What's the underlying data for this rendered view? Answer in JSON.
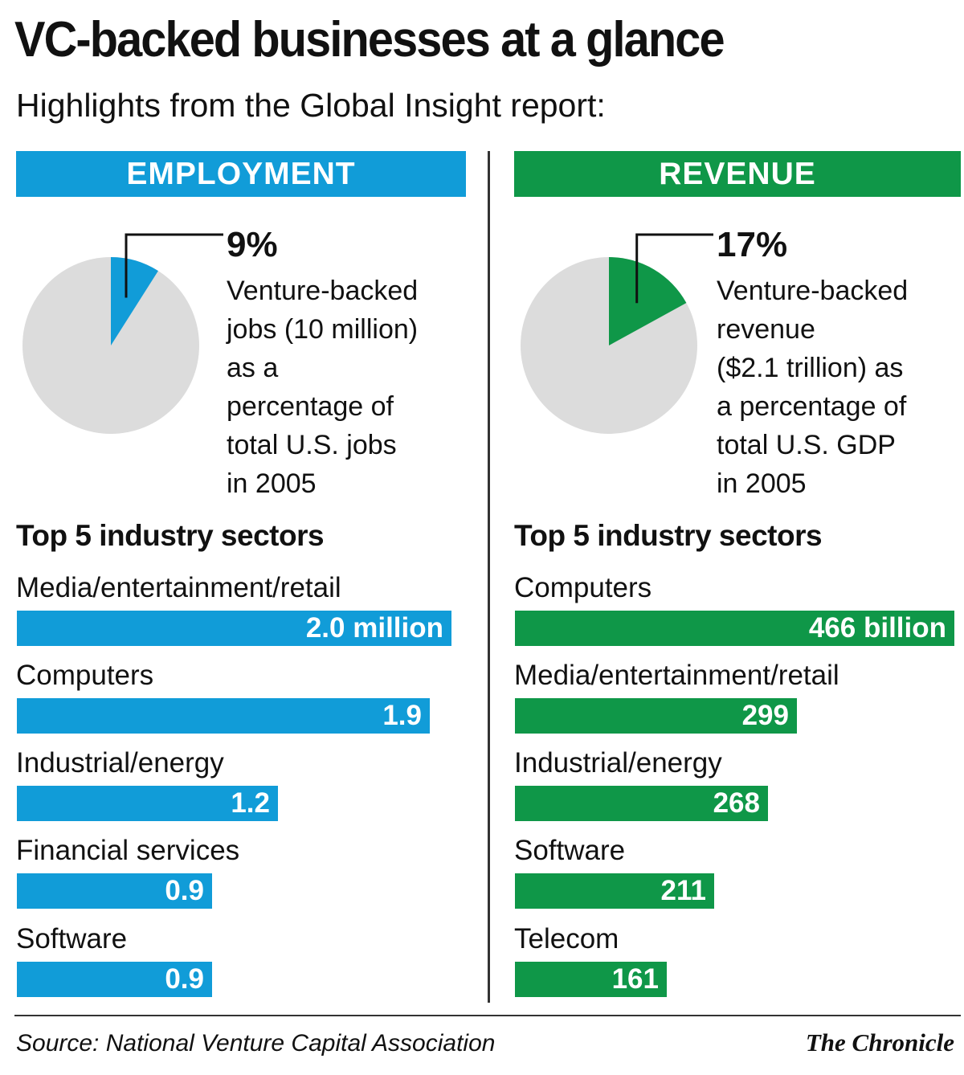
{
  "title": "VC-backed businesses at a glance",
  "subtitle": "Highlights from the Global Insight report:",
  "colors": {
    "employment": "#119cd8",
    "revenue": "#0f9748",
    "pie_base": "#dcdcdc",
    "leader": "#111111"
  },
  "chart_data": [
    {
      "type": "pie",
      "header": "EMPLOYMENT",
      "percent": 9,
      "percent_label": "9%",
      "description_lines": [
        "Venture-backed",
        "jobs (10 million)",
        "as a",
        "percentage of",
        "total U.S. jobs",
        "in 2005"
      ]
    },
    {
      "type": "bar",
      "title": "Top 5 industry sectors",
      "categories": [
        "Media/entertainment/retail",
        "Computers",
        "Industrial/energy",
        "Financial services",
        "Software"
      ],
      "values": [
        2.0,
        1.9,
        1.2,
        0.9,
        0.9
      ],
      "value_labels": [
        "2.0 million",
        "1.9",
        "1.2",
        "0.9",
        "0.9"
      ],
      "xlim": [
        0,
        2.0
      ]
    },
    {
      "type": "pie",
      "header": "REVENUE",
      "percent": 17,
      "percent_label": "17%",
      "description_lines": [
        "Venture-backed",
        "revenue",
        "($2.1 trillion) as",
        "a percentage of",
        "total U.S. GDP",
        "in 2005"
      ]
    },
    {
      "type": "bar",
      "title": "Top 5 industry sectors",
      "categories": [
        "Computers",
        "Media/entertainment/retail",
        "Industrial/energy",
        "Software",
        "Telecom"
      ],
      "values": [
        466,
        299,
        268,
        211,
        161
      ],
      "value_labels": [
        "466 billion",
        "299",
        "268",
        "211",
        "161"
      ],
      "xlim": [
        0,
        466
      ]
    }
  ],
  "source": "Source: National Venture Capital Association",
  "credit": "The Chronicle"
}
